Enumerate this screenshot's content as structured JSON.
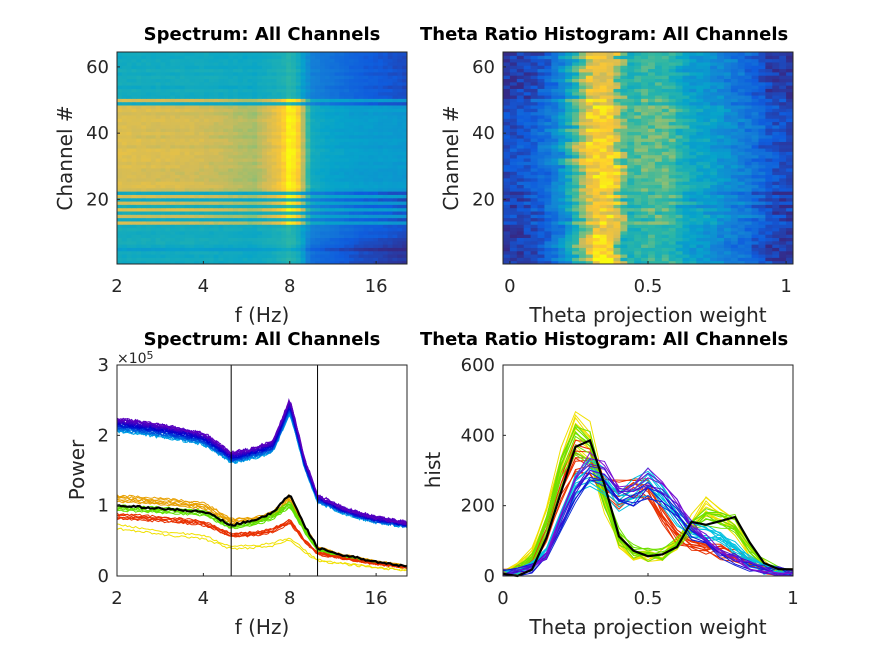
{
  "chart_data": [
    {
      "type": "heatmap",
      "title": "Spectrum: All Channels",
      "xlabel": "f (Hz)",
      "ylabel": "Channel #",
      "xscale": "log",
      "xlim": [
        2,
        20.5
      ],
      "ylim": [
        0.5,
        64.5
      ],
      "xticks": [
        "2",
        "4",
        "8",
        "16"
      ],
      "yticks": [
        "20",
        "40",
        "60"
      ],
      "colormap": "parula",
      "bright_channels": [
        13,
        15,
        17,
        19,
        21,
        23,
        24,
        25,
        26,
        27,
        28,
        29,
        30,
        31,
        32,
        33,
        34,
        35,
        36,
        37,
        38,
        39,
        40,
        41,
        42,
        43,
        44,
        45,
        46,
        47,
        48,
        50
      ],
      "peak_frequency_hz": 8
    },
    {
      "type": "heatmap",
      "title": "Theta Ratio Histogram: All Channels",
      "xlabel": "Theta projection weight",
      "ylabel": "Channel #",
      "xlim": [
        -0.025,
        1.025
      ],
      "ylim": [
        0.5,
        64.5
      ],
      "xticks": [
        "0",
        "0.5",
        "1"
      ],
      "yticks": [
        "20",
        "40",
        "60"
      ],
      "colormap": "parula",
      "peak_weight": 0.33
    },
    {
      "type": "line",
      "title": "Spectrum: All Channels",
      "xlabel": "f (Hz)",
      "ylabel": "Power",
      "xscale": "log",
      "xlim": [
        2,
        20.5
      ],
      "ylim": [
        0,
        3
      ],
      "y_exponent": "×10",
      "y_exponent_power": "5",
      "xticks": [
        "2",
        "4",
        "8",
        "16"
      ],
      "yticks": [
        "0",
        "1",
        "2",
        "3"
      ],
      "vertical_lines_hz": [
        5,
        10
      ],
      "x": [
        2,
        3,
        4,
        5,
        6,
        7,
        8,
        9,
        10,
        12,
        14,
        16,
        20.5
      ],
      "series": [
        {
          "color": "#4020d0",
          "values": [
            2.15,
            2.05,
            1.95,
            1.68,
            1.75,
            1.85,
            2.42,
            1.6,
            1.1,
            0.95,
            0.86,
            0.8,
            0.73
          ]
        },
        {
          "color": "#000000",
          "values": [
            1.0,
            0.95,
            0.92,
            0.72,
            0.8,
            0.9,
            1.17,
            0.72,
            0.4,
            0.3,
            0.25,
            0.2,
            0.13
          ]
        },
        {
          "color": "#60e000",
          "values": [
            0.97,
            0.93,
            0.9,
            0.7,
            0.75,
            0.85,
            1.02,
            0.65,
            0.37,
            0.28,
            0.23,
            0.19,
            0.12
          ]
        },
        {
          "color": "#e83000",
          "values": [
            0.85,
            0.8,
            0.75,
            0.58,
            0.6,
            0.65,
            0.78,
            0.5,
            0.32,
            0.26,
            0.21,
            0.17,
            0.12
          ]
        },
        {
          "color": "#e8a000",
          "values": [
            1.1,
            1.05,
            1.0,
            0.78,
            0.8,
            0.88,
            1.12,
            0.7,
            0.4,
            0.3,
            0.25,
            0.2,
            0.14
          ]
        },
        {
          "color": "#f0e000",
          "values": [
            0.7,
            0.6,
            0.55,
            0.4,
            0.42,
            0.45,
            0.53,
            0.35,
            0.22,
            0.18,
            0.15,
            0.12,
            0.08
          ]
        }
      ]
    },
    {
      "type": "line",
      "title": "Theta Ratio Histogram: All Channels",
      "xlabel": "Theta projection weight",
      "ylabel": "hist",
      "xlim": [
        0,
        1
      ],
      "ylim": [
        0,
        600
      ],
      "xticks": [
        "0",
        "0.5",
        "1"
      ],
      "yticks": [
        "0",
        "200",
        "400",
        "600"
      ],
      "x": [
        0,
        0.05,
        0.1,
        0.15,
        0.2,
        0.25,
        0.3,
        0.35,
        0.4,
        0.45,
        0.5,
        0.55,
        0.6,
        0.65,
        0.7,
        0.75,
        0.8,
        0.85,
        0.9,
        0.95,
        1
      ],
      "series": [
        {
          "color": "#000000",
          "values": [
            5,
            10,
            30,
            110,
            250,
            370,
            385,
            260,
            120,
            65,
            55,
            50,
            80,
            150,
            160,
            150,
            180,
            90,
            40,
            20,
            8
          ]
        },
        {
          "color": "#3020d0",
          "values": [
            5,
            10,
            25,
            60,
            150,
            250,
            300,
            290,
            230,
            230,
            260,
            240,
            190,
            130,
            100,
            70,
            50,
            30,
            20,
            12,
            8
          ]
        },
        {
          "color": "#00c0e0",
          "values": [
            5,
            12,
            30,
            70,
            160,
            260,
            290,
            270,
            220,
            240,
            270,
            230,
            170,
            130,
            120,
            110,
            80,
            40,
            20,
            12,
            8
          ]
        },
        {
          "color": "#e83000",
          "values": [
            5,
            15,
            40,
            120,
            240,
            330,
            330,
            250,
            230,
            250,
            240,
            170,
            110,
            90,
            80,
            70,
            60,
            40,
            20,
            10,
            5
          ]
        },
        {
          "color": "#70e000",
          "values": [
            5,
            15,
            50,
            150,
            300,
            390,
            360,
            230,
            110,
            70,
            60,
            60,
            90,
            140,
            170,
            160,
            150,
            80,
            40,
            15,
            8
          ]
        },
        {
          "color": "#f0e000",
          "values": [
            5,
            20,
            60,
            170,
            320,
            420,
            380,
            220,
            100,
            60,
            55,
            60,
            100,
            150,
            190,
            170,
            140,
            70,
            30,
            12,
            6
          ]
        }
      ]
    }
  ]
}
